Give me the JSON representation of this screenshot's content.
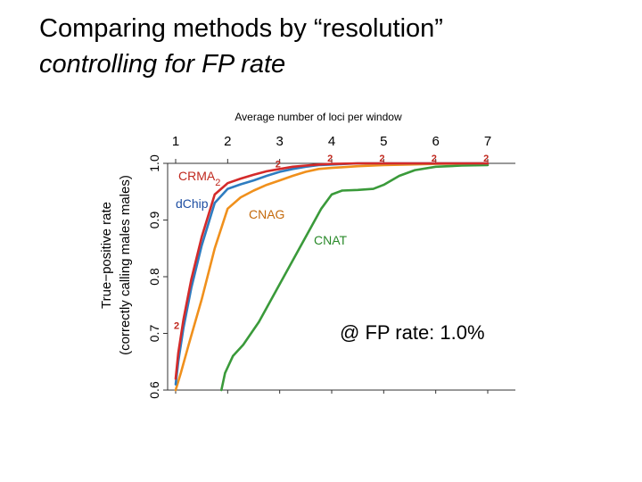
{
  "title": {
    "line1": "Comparing methods by “resolution”",
    "line2": "controlling for FP rate"
  },
  "annotation": "@ FP rate: 1.0%",
  "chart_data": {
    "type": "line",
    "top_axis_label": "Average number of loci per window",
    "ylabel_line1": "True−positive rate",
    "ylabel_line2": "(correctly calling males males)",
    "xlim": [
      1,
      7
    ],
    "ylim": [
      0.6,
      1.0
    ],
    "x_ticks": [
      "1",
      "2",
      "3",
      "4",
      "5",
      "6",
      "7"
    ],
    "y_ticks": [
      "0.6",
      "0.7",
      "0.8",
      "0.9",
      "1.0"
    ],
    "grid": false,
    "series": [
      {
        "name": "CRMA2",
        "color": "#d42a2a",
        "label_main": "CRMA",
        "label_sub": "2",
        "label_color": "#c0281e",
        "x": [
          1.0,
          1.05,
          1.15,
          1.3,
          1.5,
          1.75,
          2.0,
          2.25,
          2.5,
          2.75,
          3.0,
          3.25,
          3.5,
          3.75,
          4.0,
          4.5,
          5.0,
          6.0,
          7.0
        ],
        "y": [
          0.62,
          0.665,
          0.725,
          0.795,
          0.87,
          0.945,
          0.965,
          0.973,
          0.98,
          0.986,
          0.99,
          0.994,
          0.996,
          0.998,
          0.999,
          1.0,
          1.0,
          1.0,
          1.0
        ]
      },
      {
        "name": "dChip",
        "color": "#2e7cc0",
        "label_main": "dChip",
        "label_color": "#1f4fa3",
        "x": [
          1.0,
          1.05,
          1.15,
          1.3,
          1.5,
          1.75,
          2.0,
          2.25,
          2.5,
          2.75,
          3.0,
          3.25,
          3.5,
          3.75,
          4.0,
          4.5,
          5.0,
          6.0,
          7.0
        ],
        "y": [
          0.61,
          0.65,
          0.71,
          0.78,
          0.855,
          0.93,
          0.955,
          0.963,
          0.97,
          0.978,
          0.985,
          0.99,
          0.994,
          0.997,
          0.998,
          1.0,
          1.0,
          1.0,
          1.0
        ]
      },
      {
        "name": "CNAG",
        "color": "#f0901c",
        "label_main": "CNAG",
        "label_color": "#c46a0c",
        "x": [
          1.0,
          1.1,
          1.25,
          1.5,
          1.75,
          2.0,
          2.25,
          2.5,
          2.75,
          3.0,
          3.25,
          3.5,
          3.75,
          4.0,
          4.5,
          5.0,
          5.5,
          6.0,
          7.0
        ],
        "y": [
          0.6,
          0.63,
          0.68,
          0.76,
          0.85,
          0.92,
          0.94,
          0.952,
          0.962,
          0.97,
          0.978,
          0.985,
          0.99,
          0.992,
          0.995,
          0.997,
          0.998,
          0.999,
          1.0
        ]
      },
      {
        "name": "CNAT",
        "color": "#3a9a3a",
        "label_main": "CNAT",
        "label_color": "#2a8a2a",
        "x": [
          1.88,
          1.95,
          2.1,
          2.3,
          2.6,
          2.9,
          3.2,
          3.5,
          3.8,
          4.0,
          4.2,
          4.5,
          4.8,
          5.0,
          5.3,
          5.6,
          6.0,
          6.5,
          7.0
        ],
        "y": [
          0.6,
          0.63,
          0.66,
          0.68,
          0.72,
          0.77,
          0.82,
          0.87,
          0.92,
          0.945,
          0.952,
          0.953,
          0.955,
          0.962,
          0.978,
          0.988,
          0.994,
          0.996,
          0.997
        ]
      }
    ],
    "marker_symbol": "2",
    "marker_color": "#c0281e",
    "markers": [
      {
        "x": 1.0,
        "y": 0.705
      },
      {
        "x": 2.95,
        "y": 0.99
      },
      {
        "x": 3.95,
        "y": 1.0
      },
      {
        "x": 4.95,
        "y": 1.0
      },
      {
        "x": 5.95,
        "y": 1.0
      },
      {
        "x": 6.95,
        "y": 1.0
      }
    ]
  }
}
